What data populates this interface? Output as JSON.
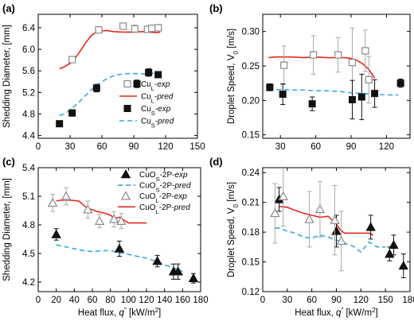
{
  "colors": {
    "red": "#e8281e",
    "blue": "#33a9df",
    "black": "#111111",
    "gray": "#8a8a8a",
    "errorbar": "#a8a8a8"
  },
  "chart_data": [
    {
      "type": "scatter",
      "panel_label": "(a)",
      "xlabel": "",
      "ylabel": "Shedding Diameter, [mm]",
      "xlim": [
        0,
        150
      ],
      "ylim": [
        4.35,
        6.65
      ],
      "xticks": [
        0,
        30,
        60,
        90,
        120,
        150
      ],
      "yticks": [
        4.4,
        4.8,
        5.2,
        5.6,
        6.0,
        6.4
      ],
      "ytick_labels": [
        "4.4",
        "4.8",
        "5.2",
        "5.6",
        "6.0",
        "6.4"
      ],
      "legend": {
        "position": "lower-right",
        "entries": [
          {
            "series": 0,
            "sub": "L",
            "suffix": "-exp"
          },
          {
            "series": 1,
            "sub": "L",
            "suffix": "-pred"
          },
          {
            "series": 2,
            "sub": "S",
            "suffix": "-exp"
          },
          {
            "series": 3,
            "sub": "S",
            "suffix": "-pred"
          }
        ]
      },
      "series": [
        {
          "name": "CuL-exp",
          "base": "Cu",
          "kind": "points",
          "marker": "square-open",
          "color": "gray",
          "x": [
            32,
            57,
            80,
            91,
            103,
            107,
            113
          ],
          "y": [
            5.81,
            6.36,
            6.43,
            6.38,
            6.37,
            6.39,
            6.4
          ],
          "err": [
            0.06,
            0.05,
            0.05,
            0.07,
            0.06,
            0.06,
            0.06
          ]
        },
        {
          "name": "CuL-pred",
          "base": "Cu",
          "kind": "line",
          "dash": false,
          "color": "red",
          "x": [
            20,
            25,
            30,
            35,
            40,
            45,
            50,
            55,
            60,
            65,
            70,
            80,
            90,
            100,
            110,
            115
          ],
          "y": [
            5.64,
            5.68,
            5.74,
            5.84,
            5.98,
            6.13,
            6.26,
            6.32,
            6.34,
            6.35,
            6.33,
            6.32,
            6.32,
            6.33,
            6.31,
            6.32
          ]
        },
        {
          "name": "CuS-exp",
          "base": "Cu",
          "kind": "points",
          "marker": "square-filled",
          "color": "black",
          "x": [
            20,
            32,
            55,
            93,
            104,
            113
          ],
          "y": [
            4.62,
            4.82,
            5.28,
            5.36,
            5.57,
            5.53
          ],
          "err": [
            0.04,
            0.06,
            0.07,
            0.07,
            0.07,
            0.05
          ]
        },
        {
          "name": "CuS-pred",
          "base": "Cu",
          "kind": "line",
          "dash": true,
          "color": "blue",
          "x": [
            20,
            25,
            30,
            35,
            40,
            45,
            50,
            55,
            60,
            65,
            70,
            75,
            80,
            85,
            90,
            95,
            100,
            105,
            110,
            115
          ],
          "y": [
            4.77,
            4.81,
            4.87,
            4.96,
            5.05,
            5.15,
            5.25,
            5.33,
            5.4,
            5.46,
            5.5,
            5.53,
            5.54,
            5.55,
            5.55,
            5.55,
            5.54,
            5.55,
            5.56,
            5.56
          ]
        }
      ]
    },
    {
      "type": "scatter",
      "panel_label": "(b)",
      "xlabel": "",
      "ylabel": "Droplet Speed, V0 [m/s]",
      "xlim": [
        15,
        140
      ],
      "ylim": [
        0.145,
        0.325
      ],
      "xticks": [
        30,
        60,
        90,
        120
      ],
      "yticks": [
        0.15,
        0.2,
        0.25,
        0.3
      ],
      "ytick_labels": [
        "0.15",
        "0.20",
        "0.25",
        "0.30"
      ],
      "series": [
        {
          "name": "CuL-exp",
          "kind": "points",
          "marker": "square-open",
          "color": "gray",
          "x": [
            33,
            58,
            79,
            91,
            102,
            105
          ],
          "y": [
            0.251,
            0.266,
            0.266,
            0.255,
            0.272,
            0.23
          ],
          "err": [
            0.028,
            0.028,
            0.025,
            0.05,
            0.03,
            0.034
          ]
        },
        {
          "name": "CuL-pred",
          "kind": "line",
          "dash": false,
          "color": "red",
          "x": [
            20,
            25,
            30,
            40,
            50,
            60,
            70,
            80,
            85,
            90,
            95,
            100,
            105,
            110
          ],
          "y": [
            0.262,
            0.263,
            0.263,
            0.263,
            0.262,
            0.263,
            0.262,
            0.262,
            0.262,
            0.261,
            0.258,
            0.253,
            0.245,
            0.232
          ]
        },
        {
          "name": "CuS-exp",
          "kind": "points",
          "marker": "square-filled",
          "color": "black",
          "x": [
            21,
            32,
            57,
            91,
            99,
            110,
            132
          ],
          "y": [
            0.219,
            0.209,
            0.195,
            0.201,
            0.205,
            0.21,
            0.225
          ],
          "err": [
            0.005,
            0.015,
            0.01,
            0.028,
            0.033,
            0.02,
            0.006
          ]
        },
        {
          "name": "CuS-pred",
          "kind": "line",
          "dash": true,
          "color": "blue",
          "x": [
            20,
            30,
            40,
            50,
            60,
            70,
            80,
            90,
            100,
            110,
            120,
            130
          ],
          "y": [
            0.214,
            0.216,
            0.215,
            0.215,
            0.214,
            0.214,
            0.213,
            0.211,
            0.21,
            0.209,
            0.208,
            0.208
          ]
        }
      ]
    },
    {
      "type": "scatter",
      "panel_label": "(c)",
      "xlabel": "Heat flux, q'' [kW/m2]",
      "ylabel": "Shedding Diameter, [mm]",
      "xlim": [
        0,
        180
      ],
      "ylim": [
        4.1,
        5.4
      ],
      "xticks": [
        0,
        20,
        40,
        60,
        80,
        100,
        120,
        140,
        160,
        180
      ],
      "yticks": [
        4.2,
        4.5,
        4.8,
        5.1,
        5.4
      ],
      "ytick_labels": [
        "4.2",
        "4.5",
        "4.8",
        "5.1",
        "5.4"
      ],
      "legend": {
        "position": "top-right",
        "entries": [
          {
            "series": 0,
            "sub": "S",
            "suffix": "-2P-exp"
          },
          {
            "series": 1,
            "sub": "S",
            "suffix": "-2P-pred"
          },
          {
            "series": 2,
            "sub": "L",
            "suffix": "-2P-exp"
          },
          {
            "series": 3,
            "sub": "L",
            "suffix": "-2P-pred"
          }
        ]
      },
      "series": [
        {
          "name": "CuOS-2P-exp",
          "base": "CuO",
          "kind": "points",
          "marker": "triangle-filled",
          "color": "black",
          "x": [
            20,
            90,
            132,
            150,
            155,
            172
          ],
          "y": [
            4.7,
            4.55,
            4.42,
            4.31,
            4.31,
            4.24
          ],
          "err": [
            0.06,
            0.08,
            0.06,
            0.08,
            0.08,
            0.05
          ]
        },
        {
          "name": "CuOS-2P-pred",
          "base": "CuO",
          "kind": "line",
          "dash": true,
          "color": "blue",
          "x": [
            20,
            30,
            40,
            50,
            60,
            70,
            80,
            90,
            100,
            110,
            120,
            130,
            140,
            150,
            160
          ],
          "y": [
            4.59,
            4.57,
            4.55,
            4.53,
            4.52,
            4.53,
            4.53,
            4.51,
            4.49,
            4.47,
            4.45,
            4.42,
            4.38,
            4.35,
            4.31
          ]
        },
        {
          "name": "CuOL-2P-exp",
          "base": "CuO",
          "kind": "points",
          "marker": "triangle-open",
          "color": "gray",
          "x": [
            16,
            31,
            55,
            68,
            84,
            92
          ],
          "y": [
            5.03,
            5.1,
            4.96,
            4.84,
            4.86,
            4.84
          ],
          "err": [
            0.09,
            0.09,
            0.09,
            0.07,
            0.08,
            0.08
          ]
        },
        {
          "name": "CuOL-2P-pred",
          "base": "CuO",
          "kind": "line",
          "dash": false,
          "color": "red",
          "x": [
            20,
            25,
            35,
            45,
            50,
            55,
            60,
            65,
            70,
            75,
            80,
            85,
            90,
            95,
            100,
            110,
            120
          ],
          "y": [
            5.05,
            5.06,
            5.06,
            5.05,
            5.01,
            4.97,
            4.96,
            4.94,
            4.93,
            4.92,
            4.9,
            4.87,
            4.88,
            4.85,
            4.82,
            4.82,
            4.82
          ]
        }
      ]
    },
    {
      "type": "scatter",
      "panel_label": "(d)",
      "xlabel": "Heat flux, q'' [kW/m2]",
      "ylabel": "Droplet Speed, V0 [m/s]",
      "xlim": [
        0,
        180
      ],
      "ylim": [
        0.12,
        0.245
      ],
      "xticks": [
        0,
        30,
        60,
        90,
        120,
        150,
        180
      ],
      "yticks": [
        0.12,
        0.15,
        0.18,
        0.21,
        0.24
      ],
      "ytick_labels": [
        "0.12",
        "0.15",
        "0.18",
        "0.21",
        "0.24"
      ],
      "series": [
        {
          "name": "CuOS-2P-exp",
          "kind": "points",
          "marker": "triangle-filled",
          "color": "black",
          "x": [
            20,
            90,
            132,
            155,
            160,
            172
          ],
          "y": [
            0.213,
            0.181,
            0.185,
            0.158,
            0.167,
            0.146
          ],
          "err": [
            0.012,
            0.016,
            0.012,
            0.007,
            0.01,
            0.012
          ]
        },
        {
          "name": "CuOS-2P-pred",
          "kind": "line",
          "dash": true,
          "color": "blue",
          "x": [
            15,
            20,
            30,
            40,
            50,
            60,
            70,
            80,
            90,
            100,
            110,
            120,
            130,
            140,
            150
          ],
          "y": [
            0.184,
            0.184,
            0.181,
            0.179,
            0.175,
            0.174,
            0.177,
            0.175,
            0.172,
            0.169,
            0.166,
            0.16,
            0.17,
            0.165,
            0.165
          ]
        },
        {
          "name": "CuOL-2P-exp",
          "kind": "points",
          "marker": "triangle-open",
          "color": "gray",
          "x": [
            15,
            25,
            57,
            70,
            88,
            96
          ],
          "y": [
            0.199,
            0.216,
            0.193,
            0.203,
            0.192,
            0.171
          ],
          "err": [
            0.03,
            0.03,
            0.028,
            0.028,
            0.035,
            0.03
          ]
        },
        {
          "name": "CuOL-2P-pred",
          "kind": "line",
          "dash": false,
          "color": "red",
          "x": [
            20,
            30,
            40,
            50,
            60,
            70,
            80,
            90,
            95,
            100,
            110,
            120,
            130,
            135
          ],
          "y": [
            0.206,
            0.205,
            0.202,
            0.199,
            0.197,
            0.195,
            0.196,
            0.188,
            0.182,
            0.179,
            0.179,
            0.179,
            0.179,
            0.177
          ]
        }
      ]
    }
  ]
}
